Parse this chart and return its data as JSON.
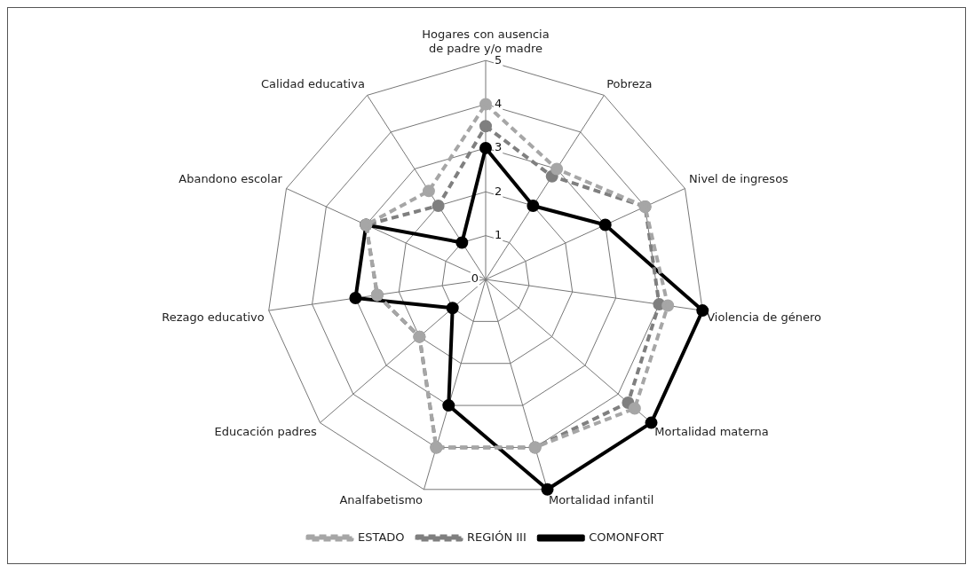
{
  "chart_data": {
    "type": "radar",
    "categories": [
      "Hogares con ausencia de padre y/o madre",
      "Pobreza",
      "Nivel de ingresos",
      "Violencia de género",
      "Mortalidad materna",
      "Mortalidad infantil",
      "Analfabetismo",
      "Educación padres",
      "Rezago educativo",
      "Abandono escolar",
      "Calidad educativa"
    ],
    "series": [
      {
        "name": "ESTADO",
        "color": "#a6a6a6",
        "line_style": "dashed",
        "values": [
          4,
          3,
          4,
          4.2,
          4.5,
          4,
          4,
          2,
          2.5,
          3,
          2.4
        ]
      },
      {
        "name": "REGIÓN III",
        "color": "#7f7f7f",
        "line_style": "dashed",
        "values": [
          3.5,
          2.8,
          4,
          4,
          4.3,
          4,
          4,
          2,
          2.5,
          3,
          2
        ]
      },
      {
        "name": "COMONFORT",
        "color": "#000000",
        "line_style": "solid",
        "values": [
          3,
          2,
          3,
          5,
          5,
          5,
          3,
          1,
          3,
          3,
          1
        ]
      }
    ],
    "ylim": [
      0,
      5
    ],
    "yticks": [
      0,
      1,
      2,
      3,
      4,
      5
    ],
    "grid": true,
    "legend": "bottom",
    "marker": "circle"
  }
}
